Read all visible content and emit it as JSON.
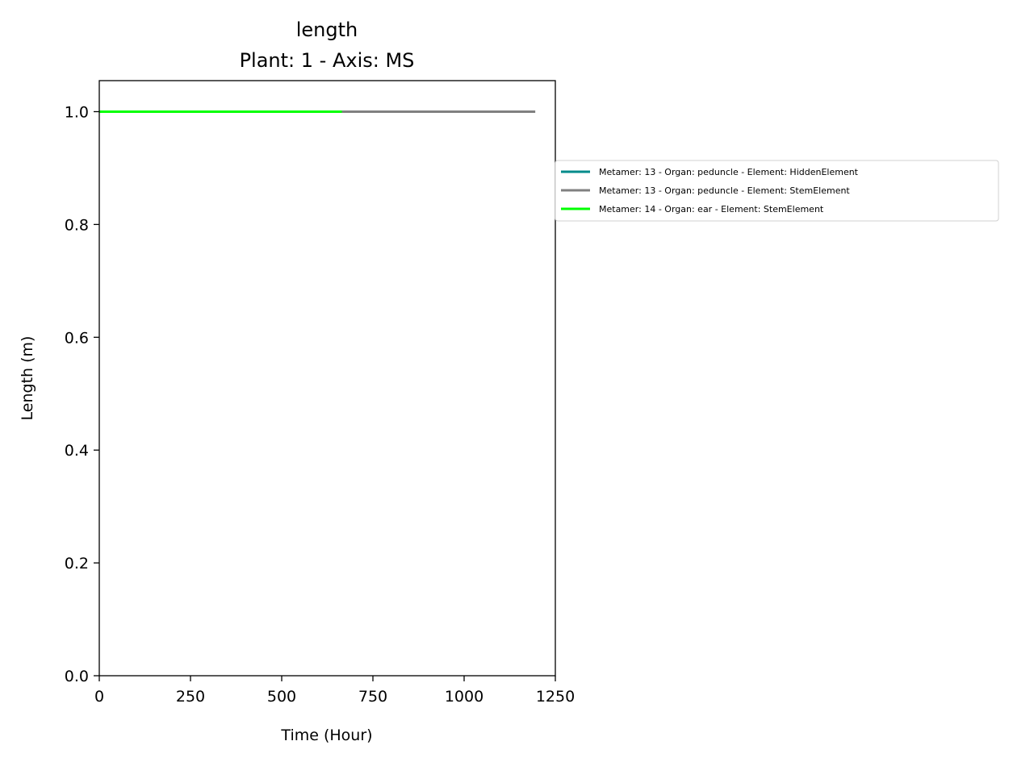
{
  "chart_data": {
    "type": "line",
    "title": "length",
    "subtitle": "Plant: 1 - Axis: MS",
    "xlabel": "Time (Hour)",
    "ylabel": "Length (m)",
    "xlim": [
      0,
      1250
    ],
    "ylim": [
      0,
      1.055
    ],
    "xticks": [
      0,
      250,
      500,
      750,
      1000,
      1250
    ],
    "xtick_labels": [
      "0",
      "250",
      "500",
      "750",
      "1000",
      "1250"
    ],
    "yticks": [
      0,
      0.2,
      0.4,
      0.6,
      0.8,
      1.0
    ],
    "ytick_labels": [
      "0.0",
      "0.2",
      "0.4",
      "0.6",
      "0.8",
      "1.0"
    ],
    "grid": false,
    "legend_position": "right, outside the plot area",
    "series": [
      {
        "name": "Metamer: 13 - Organ: peduncle - Element: HiddenElement",
        "color": "#008b8b",
        "x": [
          0,
          660
        ],
        "y": [
          1.0,
          1.0
        ]
      },
      {
        "name": "Metamer: 13 - Organ: peduncle - Element: StemElement",
        "color": "#808080",
        "x": [
          0,
          1195
        ],
        "y": [
          1.0,
          1.0
        ]
      },
      {
        "name": "Metamer: 14 - Organ: ear - Element: StemElement",
        "color": "#00ff00",
        "x": [
          0,
          665
        ],
        "y": [
          1.0,
          1.0
        ]
      }
    ]
  }
}
